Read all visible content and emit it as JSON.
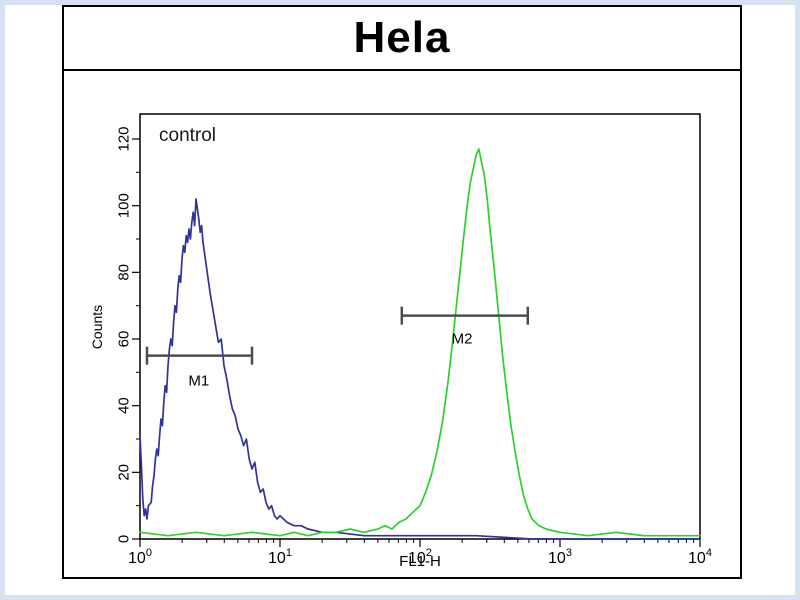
{
  "figure": {
    "title": "Hela",
    "annotation": "control"
  },
  "chart_data": {
    "type": "line",
    "subtype": "flow-cytometry-histogram",
    "title": "Hela",
    "xlabel": "FL1-H",
    "ylabel": "Counts",
    "annotation": "control",
    "x_scale": "log10",
    "x_log_range": [
      0,
      4
    ],
    "x_tick_exponents": [
      0,
      1,
      2,
      3,
      4
    ],
    "y_ticks": [
      0,
      20,
      40,
      60,
      80,
      100,
      120
    ],
    "y_max": 127.5,
    "grid": false,
    "legend": "none",
    "colors": {
      "blue_curve": "#32329e",
      "green_curve": "#2bd22b",
      "marker": "#4d4d4d",
      "axis": "#000000"
    },
    "series": [
      {
        "id": "blue-curve",
        "color": "#32329e",
        "points": [
          [
            0,
            31
          ],
          [
            0.01,
            22
          ],
          [
            0.02,
            12
          ],
          [
            0.03,
            7
          ],
          [
            0.04,
            9
          ],
          [
            0.05,
            6
          ],
          [
            0.06,
            10
          ],
          [
            0.08,
            11
          ],
          [
            0.09,
            16
          ],
          [
            0.1,
            19
          ],
          [
            0.11,
            24
          ],
          [
            0.12,
            27
          ],
          [
            0.13,
            25
          ],
          [
            0.14,
            31
          ],
          [
            0.15,
            36
          ],
          [
            0.16,
            34
          ],
          [
            0.17,
            41
          ],
          [
            0.18,
            46
          ],
          [
            0.19,
            44
          ],
          [
            0.2,
            52
          ],
          [
            0.21,
            57
          ],
          [
            0.22,
            60
          ],
          [
            0.23,
            58
          ],
          [
            0.24,
            65
          ],
          [
            0.25,
            70
          ],
          [
            0.26,
            68
          ],
          [
            0.27,
            75
          ],
          [
            0.28,
            79
          ],
          [
            0.29,
            77
          ],
          [
            0.3,
            84
          ],
          [
            0.31,
            88
          ],
          [
            0.32,
            86
          ],
          [
            0.33,
            91
          ],
          [
            0.34,
            89
          ],
          [
            0.35,
            93
          ],
          [
            0.36,
            90
          ],
          [
            0.37,
            95
          ],
          [
            0.38,
            98
          ],
          [
            0.39,
            94
          ],
          [
            0.4,
            102
          ],
          [
            0.41,
            99
          ],
          [
            0.42,
            96
          ],
          [
            0.43,
            92
          ],
          [
            0.44,
            94
          ],
          [
            0.45,
            89
          ],
          [
            0.46,
            86
          ],
          [
            0.47,
            83
          ],
          [
            0.48,
            80
          ],
          [
            0.49,
            77
          ],
          [
            0.5,
            74
          ],
          [
            0.52,
            69
          ],
          [
            0.54,
            64
          ],
          [
            0.56,
            59
          ],
          [
            0.58,
            60
          ],
          [
            0.6,
            52
          ],
          [
            0.62,
            48
          ],
          [
            0.64,
            43
          ],
          [
            0.66,
            39
          ],
          [
            0.68,
            37
          ],
          [
            0.7,
            33
          ],
          [
            0.72,
            31
          ],
          [
            0.74,
            28
          ],
          [
            0.76,
            30
          ],
          [
            0.78,
            24
          ],
          [
            0.8,
            21
          ],
          [
            0.82,
            23
          ],
          [
            0.84,
            17
          ],
          [
            0.86,
            14
          ],
          [
            0.88,
            15
          ],
          [
            0.9,
            11
          ],
          [
            0.92,
            9
          ],
          [
            0.94,
            10
          ],
          [
            0.96,
            7
          ],
          [
            0.98,
            6
          ],
          [
            1.0,
            7
          ],
          [
            1.05,
            5
          ],
          [
            1.1,
            4
          ],
          [
            1.15,
            4
          ],
          [
            1.2,
            3
          ],
          [
            1.3,
            2
          ],
          [
            1.4,
            2
          ],
          [
            1.6,
            1
          ],
          [
            1.8,
            1
          ],
          [
            2.0,
            1
          ],
          [
            2.4,
            1
          ],
          [
            2.8,
            0
          ],
          [
            3.2,
            0
          ],
          [
            3.6,
            0
          ],
          [
            4.0,
            0
          ]
        ]
      },
      {
        "id": "green-curve",
        "color": "#2bd22b",
        "points": [
          [
            0,
            2
          ],
          [
            0.2,
            1
          ],
          [
            0.4,
            2
          ],
          [
            0.6,
            1
          ],
          [
            0.8,
            2
          ],
          [
            1.0,
            1
          ],
          [
            1.1,
            2
          ],
          [
            1.2,
            1
          ],
          [
            1.3,
            2
          ],
          [
            1.4,
            2
          ],
          [
            1.5,
            3
          ],
          [
            1.6,
            2
          ],
          [
            1.7,
            3
          ],
          [
            1.75,
            4
          ],
          [
            1.8,
            3
          ],
          [
            1.85,
            5
          ],
          [
            1.9,
            6
          ],
          [
            1.95,
            8
          ],
          [
            2.0,
            10
          ],
          [
            2.04,
            14
          ],
          [
            2.08,
            19
          ],
          [
            2.12,
            26
          ],
          [
            2.16,
            35
          ],
          [
            2.2,
            47
          ],
          [
            2.24,
            62
          ],
          [
            2.28,
            78
          ],
          [
            2.31,
            90
          ],
          [
            2.34,
            101
          ],
          [
            2.36,
            107
          ],
          [
            2.38,
            111
          ],
          [
            2.4,
            115
          ],
          [
            2.42,
            117
          ],
          [
            2.44,
            113
          ],
          [
            2.46,
            109
          ],
          [
            2.48,
            102
          ],
          [
            2.5,
            93
          ],
          [
            2.53,
            81
          ],
          [
            2.56,
            68
          ],
          [
            2.59,
            55
          ],
          [
            2.62,
            44
          ],
          [
            2.65,
            34
          ],
          [
            2.68,
            26
          ],
          [
            2.71,
            19
          ],
          [
            2.74,
            13
          ],
          [
            2.77,
            9
          ],
          [
            2.8,
            6
          ],
          [
            2.85,
            4
          ],
          [
            2.9,
            3
          ],
          [
            3.0,
            2
          ],
          [
            3.2,
            1
          ],
          [
            3.4,
            2
          ],
          [
            3.6,
            1
          ],
          [
            3.8,
            1
          ],
          [
            4.0,
            1
          ]
        ]
      }
    ],
    "markers": [
      {
        "label": "M1",
        "y": 55,
        "x_log_start": 0.05,
        "x_log_end": 0.8,
        "label_x_log": 0.42,
        "label_dy": 30
      },
      {
        "label": "M2",
        "y": 67,
        "x_log_start": 1.87,
        "x_log_end": 2.77,
        "label_x_log": 2.3,
        "label_dy": 28
      }
    ]
  }
}
